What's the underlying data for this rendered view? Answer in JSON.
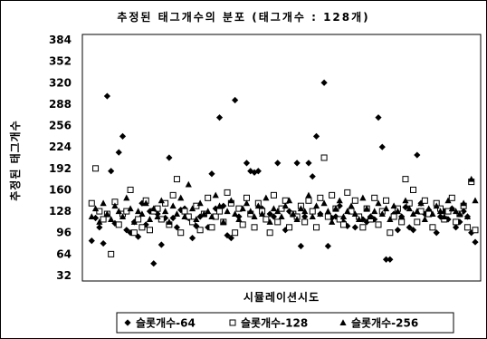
{
  "chart_data": {
    "type": "scatter",
    "title": "추정된 태그개수의 분포 (태그개수 : 128개)",
    "xlabel": "시뮬레이션시도",
    "ylabel": "추정된 태그개수",
    "ylim": [
      32,
      384
    ],
    "yticks": [
      32,
      64,
      96,
      128,
      160,
      192,
      224,
      256,
      288,
      320,
      352,
      384
    ],
    "xlim": [
      0,
      100
    ],
    "grid": false,
    "legend_position": "bottom",
    "series": [
      {
        "name": "슬롯개수-64",
        "marker": "filled-diamond",
        "x": [
          1,
          2,
          3,
          4,
          5,
          6,
          7,
          8,
          9,
          10,
          11,
          12,
          13,
          14,
          15,
          16,
          17,
          18,
          19,
          20,
          21,
          22,
          23,
          24,
          25,
          26,
          27,
          28,
          29,
          30,
          31,
          32,
          33,
          34,
          35,
          36,
          37,
          38,
          39,
          40,
          41,
          42,
          43,
          44,
          45,
          46,
          47,
          48,
          49,
          50,
          51,
          52,
          53,
          54,
          55,
          56,
          57,
          58,
          59,
          60,
          61,
          62,
          63,
          64,
          65,
          66,
          67,
          68,
          69,
          70,
          71,
          72,
          73,
          74,
          75,
          76,
          77,
          78,
          79,
          80,
          81,
          82,
          83,
          84,
          85,
          86,
          87,
          88,
          89,
          90,
          91,
          92,
          93,
          94,
          95,
          96,
          97,
          98,
          99,
          100
        ],
        "y": [
          84,
          118,
          104,
          80,
          300,
          188,
          110,
          216,
          240,
          100,
          96,
          112,
          90,
          140,
          108,
          128,
          50,
          124,
          78,
          118,
          208,
          118,
          104,
          130,
          132,
          118,
          88,
          106,
          120,
          124,
          104,
          184,
          132,
          268,
          136,
          92,
          88,
          294,
          120,
          108,
          200,
          188,
          186,
          188,
          132,
          116,
          124,
          120,
          200,
          132,
          100,
          128,
          124,
          200,
          76,
          120,
          200,
          180,
          240,
          124,
          320,
          76,
          118,
          120,
          136,
          112,
          106,
          128,
          104,
          120,
          116,
          112,
          120,
          116,
          268,
          224,
          56,
          56,
          124,
          100,
          120,
          134,
          104,
          100,
          212,
          140,
          124,
          130,
          104,
          96,
          120,
          128,
          116,
          132,
          104,
          112,
          128,
          120,
          96,
          82
        ]
      },
      {
        "name": "슬롯개수-128",
        "marker": "hollow-square",
        "x": [
          1,
          2,
          3,
          4,
          5,
          6,
          7,
          8,
          9,
          10,
          11,
          12,
          13,
          14,
          15,
          16,
          17,
          18,
          19,
          20,
          21,
          22,
          23,
          24,
          25,
          26,
          27,
          28,
          29,
          30,
          31,
          32,
          33,
          34,
          35,
          36,
          37,
          38,
          39,
          40,
          41,
          42,
          43,
          44,
          45,
          46,
          47,
          48,
          49,
          50,
          51,
          52,
          53,
          54,
          55,
          56,
          57,
          58,
          59,
          60,
          61,
          62,
          63,
          64,
          65,
          66,
          67,
          68,
          69,
          70,
          71,
          72,
          73,
          74,
          75,
          76,
          77,
          78,
          79,
          80,
          81,
          82,
          83,
          84,
          85,
          86,
          87,
          88,
          89,
          90,
          91,
          92,
          93,
          94,
          95,
          96,
          97,
          98,
          99,
          100
        ],
        "y": [
          140,
          192,
          128,
          116,
          124,
          64,
          142,
          108,
          124,
          128,
          160,
          96,
          116,
          104,
          144,
          100,
          128,
          132,
          116,
          140,
          108,
          152,
          176,
          96,
          128,
          120,
          112,
          136,
          100,
          124,
          148,
          104,
          120,
          128,
          112,
          156,
          140,
          96,
          132,
          108,
          148,
          124,
          104,
          140,
          128,
          116,
          96,
          152,
          112,
          132,
          144,
          104,
          124,
          120,
          136,
          112,
          144,
          128,
          104,
          148,
          208,
          120,
          152,
          132,
          116,
          108,
          156,
          128,
          144,
          120,
          104,
          132,
          116,
          148,
          108,
          128,
          144,
          96,
          120,
          132,
          112,
          176,
          140,
          160,
          112,
          128,
          144,
          124,
          104,
          140,
          132,
          116,
          128,
          148,
          112,
          124,
          136,
          104,
          172,
          100
        ]
      },
      {
        "name": "슬롯개수-256",
        "marker": "filled-triangle",
        "x": [
          1,
          2,
          3,
          4,
          5,
          6,
          7,
          8,
          9,
          10,
          11,
          12,
          13,
          14,
          15,
          16,
          17,
          18,
          19,
          20,
          21,
          22,
          23,
          24,
          25,
          26,
          27,
          28,
          29,
          30,
          31,
          32,
          33,
          34,
          35,
          36,
          37,
          38,
          39,
          40,
          41,
          42,
          43,
          44,
          45,
          46,
          47,
          48,
          49,
          50,
          51,
          52,
          53,
          54,
          55,
          56,
          57,
          58,
          59,
          60,
          61,
          62,
          63,
          64,
          65,
          66,
          67,
          68,
          69,
          70,
          71,
          72,
          73,
          74,
          75,
          76,
          77,
          78,
          79,
          80,
          81,
          82,
          83,
          84,
          85,
          86,
          87,
          88,
          89,
          90,
          91,
          92,
          93,
          94,
          95,
          96,
          97,
          98,
          99,
          100
        ],
        "y": [
          120,
          132,
          112,
          140,
          124,
          116,
          136,
          128,
          120,
          148,
          132,
          112,
          128,
          124,
          140,
          116,
          132,
          120,
          144,
          128,
          112,
          136,
          124,
          148,
          120,
          168,
          132,
          116,
          140,
          124,
          128,
          120,
          152,
          136,
          112,
          128,
          144,
          124,
          116,
          132,
          140,
          128,
          120,
          136,
          124,
          148,
          112,
          132,
          128,
          120,
          136,
          144,
          124,
          116,
          132,
          128,
          152,
          120,
          136,
          124,
          140,
          128,
          112,
          132,
          144,
          120,
          128,
          136,
          124,
          116,
          148,
          132,
          120,
          128,
          140,
          124,
          132,
          116,
          136,
          128,
          120,
          144,
          132,
          124,
          128,
          140,
          116,
          132,
          124,
          136,
          128,
          120,
          144,
          132,
          128,
          124,
          140,
          120,
          176,
          144
        ]
      }
    ]
  }
}
